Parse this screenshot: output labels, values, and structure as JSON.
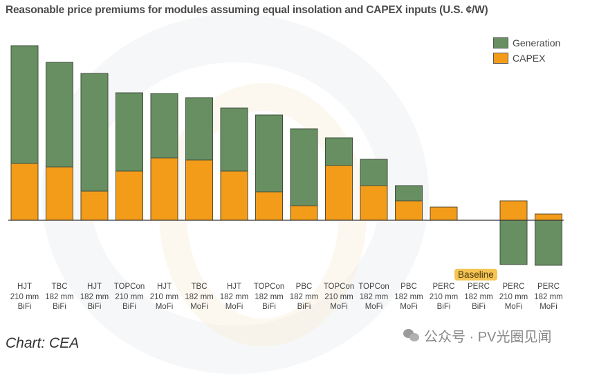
{
  "chart_data": {
    "type": "bar",
    "stacked": true,
    "title": "Reasonable price premiums for modules assuming equal insolation and CAPEX inputs (U.S. ¢/W)",
    "xlabel": "",
    "ylabel": "",
    "grid": false,
    "y_axis_shown": false,
    "value_units": "relative (estimated from bar heights; no y-axis shown)",
    "ylim": [
      -7,
      26
    ],
    "categories": [
      [
        "HJT",
        "210 mm",
        "BiFi"
      ],
      [
        "TBC",
        "182 mm",
        "BiFi"
      ],
      [
        "HJT",
        "182 mm",
        "BiFi"
      ],
      [
        "TOPCon",
        "210 mm",
        "BiFi"
      ],
      [
        "HJT",
        "210 mm",
        "MoFi"
      ],
      [
        "TBC",
        "182 mm",
        "MoFi"
      ],
      [
        "HJT",
        "182 mm",
        "MoFi"
      ],
      [
        "TOPCon",
        "182 mm",
        "BiFi"
      ],
      [
        "PBC",
        "182 mm",
        "BiFi"
      ],
      [
        "TOPCon",
        "210 mm",
        "MoFi"
      ],
      [
        "TOPCon",
        "182 mm",
        "MoFi"
      ],
      [
        "PBC",
        "182 mm",
        "MoFi"
      ],
      [
        "PERC",
        "210 mm",
        "BiFi"
      ],
      [
        "PERC",
        "182 mm",
        "BiFi"
      ],
      [
        "PERC",
        "210 mm",
        "MoFi"
      ],
      [
        "PERC",
        "182 mm",
        "MoFi"
      ]
    ],
    "series": [
      {
        "name": "CAPEX",
        "color": "#f39c1a",
        "values": [
          8.2,
          7.7,
          4.2,
          7.1,
          9.0,
          8.7,
          7.1,
          4.1,
          2.1,
          7.9,
          5.0,
          2.8,
          1.9,
          0,
          2.8,
          0.9
        ]
      },
      {
        "name": "Generation",
        "color": "#688f62",
        "values": [
          17.0,
          15.1,
          17.0,
          11.3,
          9.3,
          9.0,
          9.1,
          11.1,
          11.1,
          4.0,
          3.8,
          2.2,
          0,
          0,
          -6.4,
          -6.5
        ]
      }
    ],
    "legend": {
      "position": "top-right",
      "entries": [
        "Generation",
        "CAPEX"
      ]
    },
    "annotations": [
      {
        "text": "Baseline",
        "category_index": 13
      }
    ]
  },
  "source": "Chart: CEA",
  "watermark": "公众号 · PV光圈见闻"
}
